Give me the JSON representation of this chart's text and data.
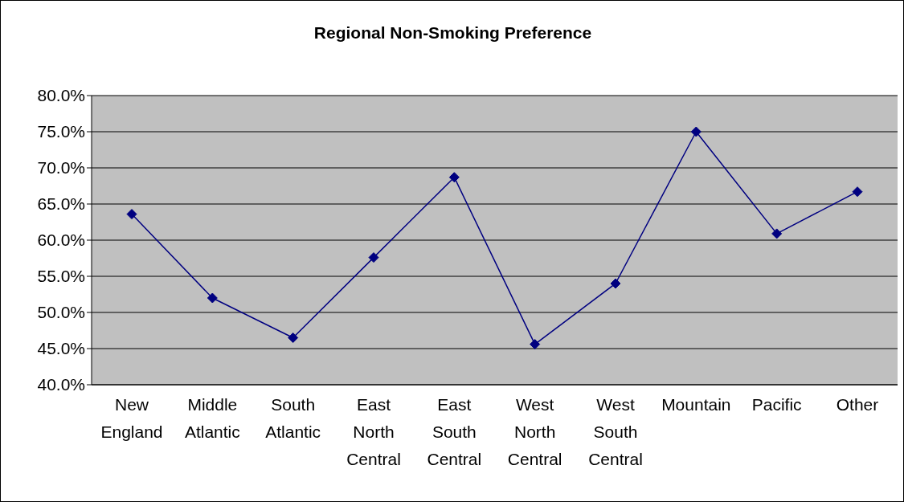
{
  "chart_data": {
    "type": "line",
    "title": "Regional Non-Smoking Preference",
    "categories": [
      "New England",
      "Middle Atlantic",
      "South Atlantic",
      "East North Central",
      "East South Central",
      "West North Central",
      "West South Central",
      "Mountain",
      "Pacific",
      "Other"
    ],
    "values": [
      63.6,
      52.0,
      46.5,
      57.6,
      68.7,
      45.6,
      54.0,
      75.0,
      60.9,
      66.7
    ],
    "color": "#000080",
    "marker": "diamond",
    "grid": "y",
    "ylim": [
      40,
      80
    ],
    "yticks": [
      {
        "value": 40,
        "label": "40.0%"
      },
      {
        "value": 45,
        "label": "45.0%"
      },
      {
        "value": 50,
        "label": "50.0%"
      },
      {
        "value": 55,
        "label": "55.0%"
      },
      {
        "value": 60,
        "label": "60.0%"
      },
      {
        "value": 65,
        "label": "65.0%"
      },
      {
        "value": 70,
        "label": "70.0%"
      },
      {
        "value": 75,
        "label": "75.0%"
      },
      {
        "value": 80,
        "label": "80.0%"
      }
    ]
  }
}
